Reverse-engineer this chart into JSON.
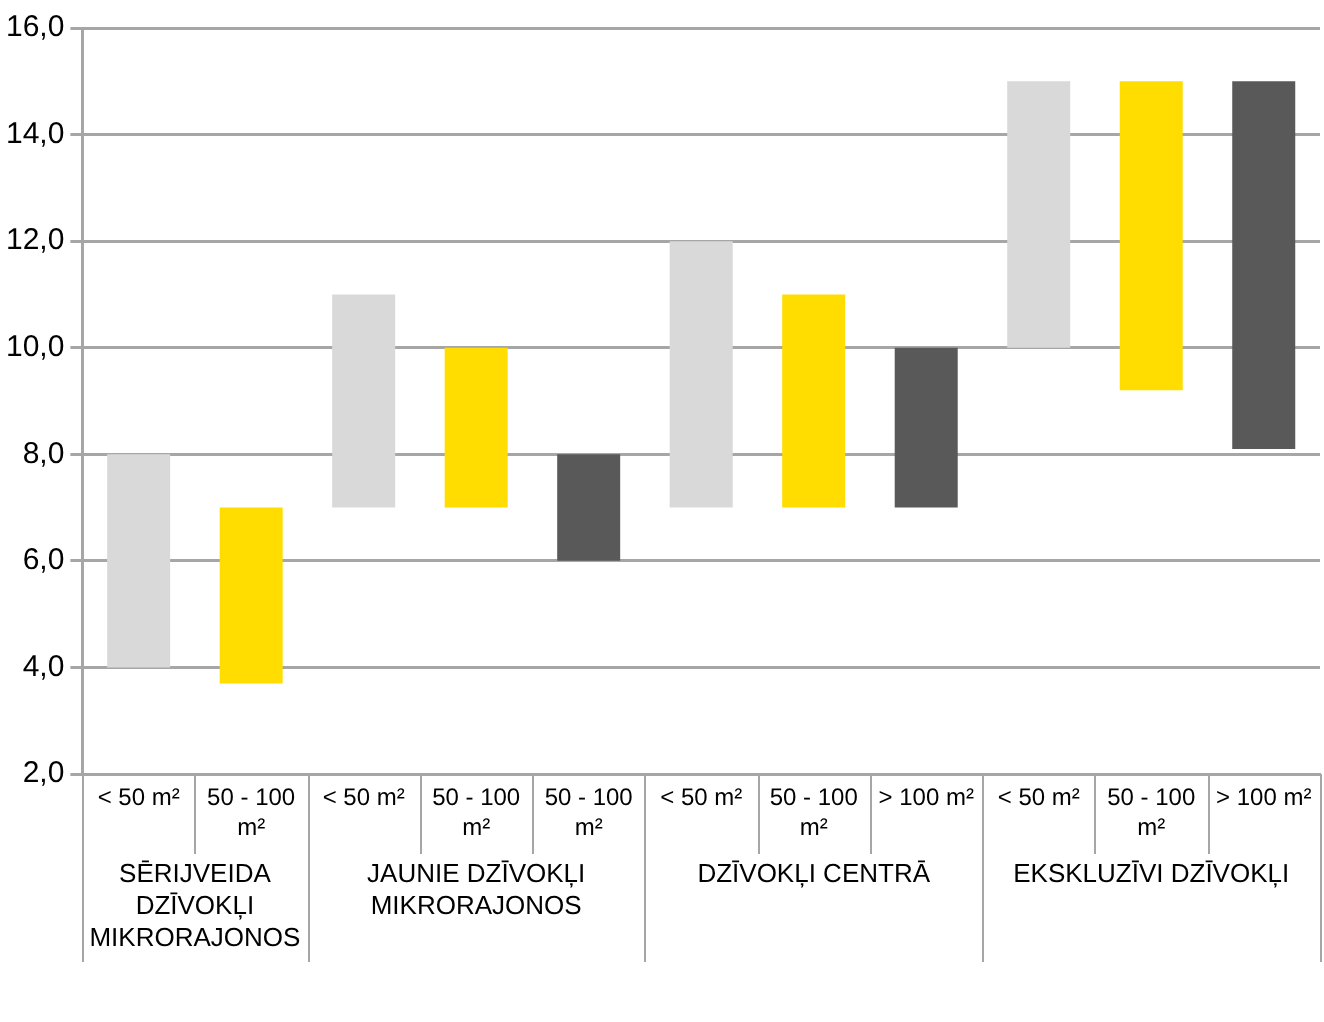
{
  "chart_data": {
    "type": "bar",
    "categories": [
      "< 50 m²",
      "50 - 100 m²",
      "< 50 m²",
      "50 - 100 m²",
      "50 - 100 m²",
      "< 50 m²",
      "50 - 100 m²",
      "> 100 m²",
      "< 50 m²",
      "50 - 100 m²",
      "> 100 m²"
    ],
    "base": [
      4,
      3.7,
      7,
      7,
      6,
      7,
      7,
      7,
      10,
      9.2,
      8.1
    ],
    "values": [
      4,
      3.3,
      4,
      3,
      2,
      5,
      4,
      3,
      5,
      5.8,
      6.9
    ],
    "colors": [
      "#d9d9d9",
      "#ffdd00",
      "#d9d9d9",
      "#ffdd00",
      "#595959",
      "#d9d9d9",
      "#ffdd00",
      "#595959",
      "#d9d9d9",
      "#ffdd00",
      "#595959"
    ],
    "ylim": [
      2,
      16
    ],
    "yticks": [
      {
        "value": 2,
        "label": "2,0"
      },
      {
        "value": 4,
        "label": "4,0"
      },
      {
        "value": 6,
        "label": "6,0"
      },
      {
        "value": 8,
        "label": "8,0"
      },
      {
        "value": 10,
        "label": "10,0"
      },
      {
        "value": 12,
        "label": "12,0"
      },
      {
        "value": 14,
        "label": "14,0"
      },
      {
        "value": 16,
        "label": "16,0"
      }
    ],
    "grid": "y",
    "legend": false,
    "annotations": [
      "SĒRIJVEIDA DZĪVOKĻI MIKRORAJONOS",
      "JAUNIE DZĪVOKĻI MIKRORAJONOS",
      "DZĪVOKĻI CENTRĀ",
      "EKSKLUZĪVI DZĪVOKĻI"
    ]
  }
}
